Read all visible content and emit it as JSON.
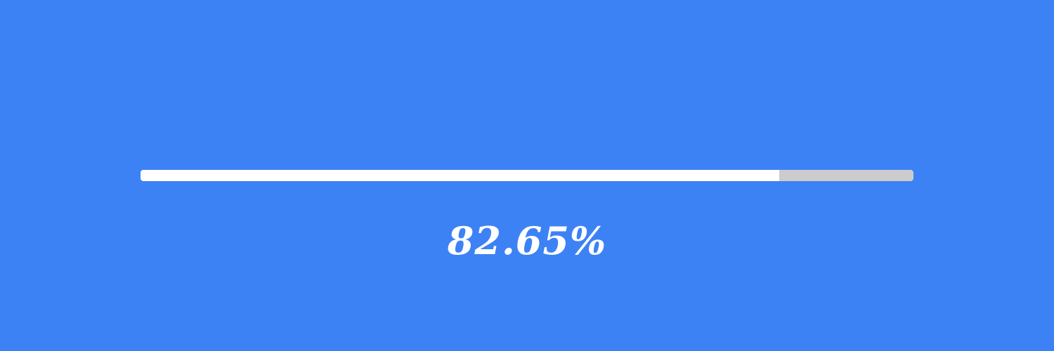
{
  "colors": {
    "background": "#3d82f5",
    "track": "#cccccc",
    "fill": "#ffffff",
    "text": "#ffffff"
  },
  "progress": {
    "fraction": 0.8265,
    "label": "82.65%"
  }
}
